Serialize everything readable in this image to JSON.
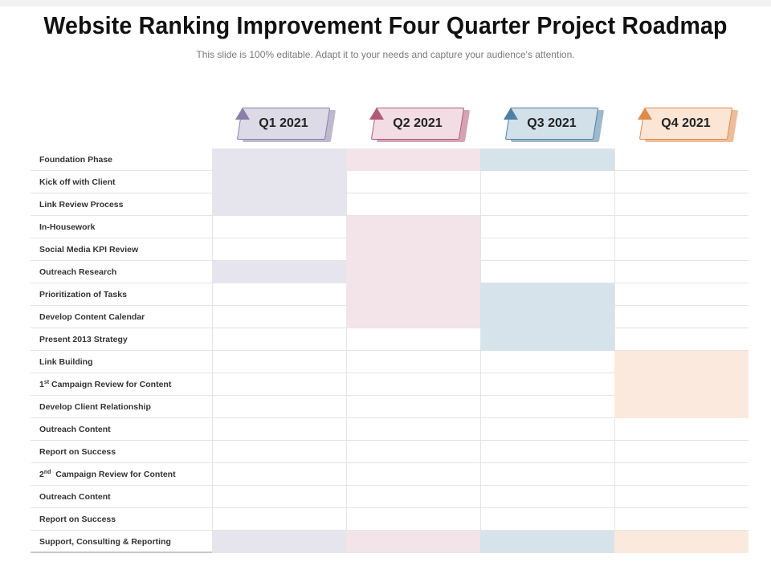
{
  "header": {
    "title": "Website Ranking Improvement Four Quarter Project Roadmap",
    "subtitle": "This slide is 100% editable. Adapt it to your needs and capture your audience's attention."
  },
  "chart_data": {
    "type": "table",
    "quarters": [
      {
        "label": "Q1 2021",
        "color": "#e6e4ec",
        "accent": "#8a7fa8",
        "face": "#dcdae6"
      },
      {
        "label": "Q2 2021",
        "color": "#f2e4e8",
        "accent": "#b05a78",
        "face": "#f1dde3"
      },
      {
        "label": "Q3 2021",
        "color": "#d7e3eb",
        "accent": "#4f7fa3",
        "face": "#d2e0ea"
      },
      {
        "label": "Q4 2021",
        "color": "#fbe9dd",
        "accent": "#e0894a",
        "face": "#fbe5d5"
      }
    ],
    "tasks": [
      {
        "label": "Foundation Phase",
        "active": [
          1,
          1,
          1,
          0
        ]
      },
      {
        "label": "Kick off with Client",
        "active": [
          1,
          0,
          0,
          0
        ]
      },
      {
        "label": "Link Review Process",
        "active": [
          1,
          0,
          0,
          0
        ]
      },
      {
        "label": "In-Housework",
        "active": [
          0,
          1,
          0,
          0
        ]
      },
      {
        "label": "Social Media KPI Review",
        "active": [
          0,
          1,
          0,
          0
        ]
      },
      {
        "label": "Outreach Research",
        "active": [
          1,
          1,
          0,
          0
        ]
      },
      {
        "label": "Prioritization of Tasks",
        "active": [
          0,
          1,
          1,
          0
        ]
      },
      {
        "label": "Develop Content Calendar",
        "active": [
          0,
          1,
          1,
          0
        ]
      },
      {
        "label": "Present 2013 Strategy",
        "active": [
          0,
          0,
          1,
          0
        ]
      },
      {
        "label": "Link Building",
        "active": [
          0,
          0,
          0,
          1
        ]
      },
      {
        "label": "1",
        "sup": "st",
        "rest": " Campaign Review for Content",
        "active": [
          0,
          0,
          0,
          1
        ]
      },
      {
        "label": "Develop Client Relationship",
        "active": [
          0,
          0,
          0,
          1
        ]
      },
      {
        "label": "Outreach Content",
        "active": [
          0,
          0,
          0,
          0
        ]
      },
      {
        "label": "Report on Success",
        "active": [
          0,
          0,
          0,
          0
        ]
      },
      {
        "label": "2",
        "sup": "nd",
        "rest": "  Campaign Review for Content",
        "active": [
          0,
          0,
          0,
          0
        ]
      },
      {
        "label": "Outreach Content",
        "active": [
          0,
          0,
          0,
          0
        ]
      },
      {
        "label": "Report on Success",
        "active": [
          0,
          0,
          0,
          0
        ]
      },
      {
        "label": "Support, Consulting & Reporting",
        "active": [
          1,
          1,
          1,
          1
        ]
      }
    ]
  }
}
